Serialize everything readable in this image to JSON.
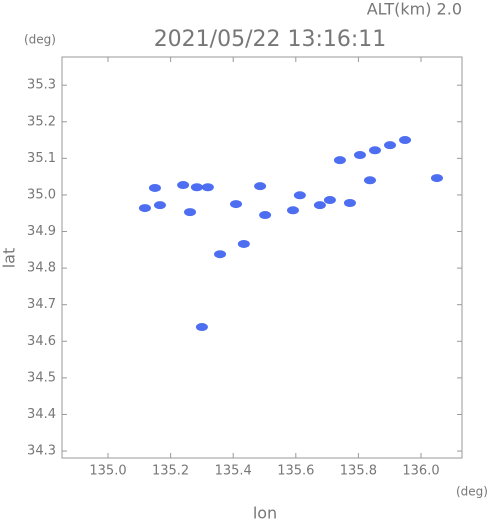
{
  "chart_data": {
    "type": "scatter",
    "title": "2021/05/22 13:16:11",
    "subtitle": "ALT(km) 2.0",
    "x_label": "lon",
    "y_label": "lat",
    "x_unit": "(deg)",
    "y_unit": "(deg)",
    "xlim": [
      134.853,
      136.131
    ],
    "ylim": [
      34.281,
      35.377
    ],
    "xticks": [
      {
        "value": 135,
        "label": "135.0"
      },
      135.2,
      135.4,
      135.6,
      135.8,
      {
        "value": 136,
        "label": "136.0"
      }
    ],
    "yticks": [
      34.3,
      34.4,
      34.5,
      34.6,
      34.7,
      34.8,
      34.9,
      {
        "value": 35,
        "label": "35.0"
      },
      35.1,
      35.2,
      35.3
    ],
    "series": [
      {
        "color": "#3a5ef0",
        "x": [
          135.15,
          135.118,
          135.166,
          135.24,
          135.284,
          135.319,
          135.262,
          135.409,
          135.486,
          135.502,
          135.591,
          135.613,
          135.677,
          135.709,
          135.773,
          135.741,
          135.805,
          135.853,
          135.901,
          135.949,
          135.837,
          136.051,
          135.3,
          135.358,
          135.434
        ],
        "y": [
          35.019,
          34.964,
          34.972,
          35.027,
          35.021,
          35.021,
          34.953,
          34.975,
          35.024,
          34.945,
          34.958,
          34.999,
          34.972,
          34.986,
          34.978,
          35.095,
          35.109,
          35.122,
          35.136,
          35.15,
          35.04,
          35.046,
          34.639,
          34.838,
          34.866
        ]
      }
    ]
  }
}
